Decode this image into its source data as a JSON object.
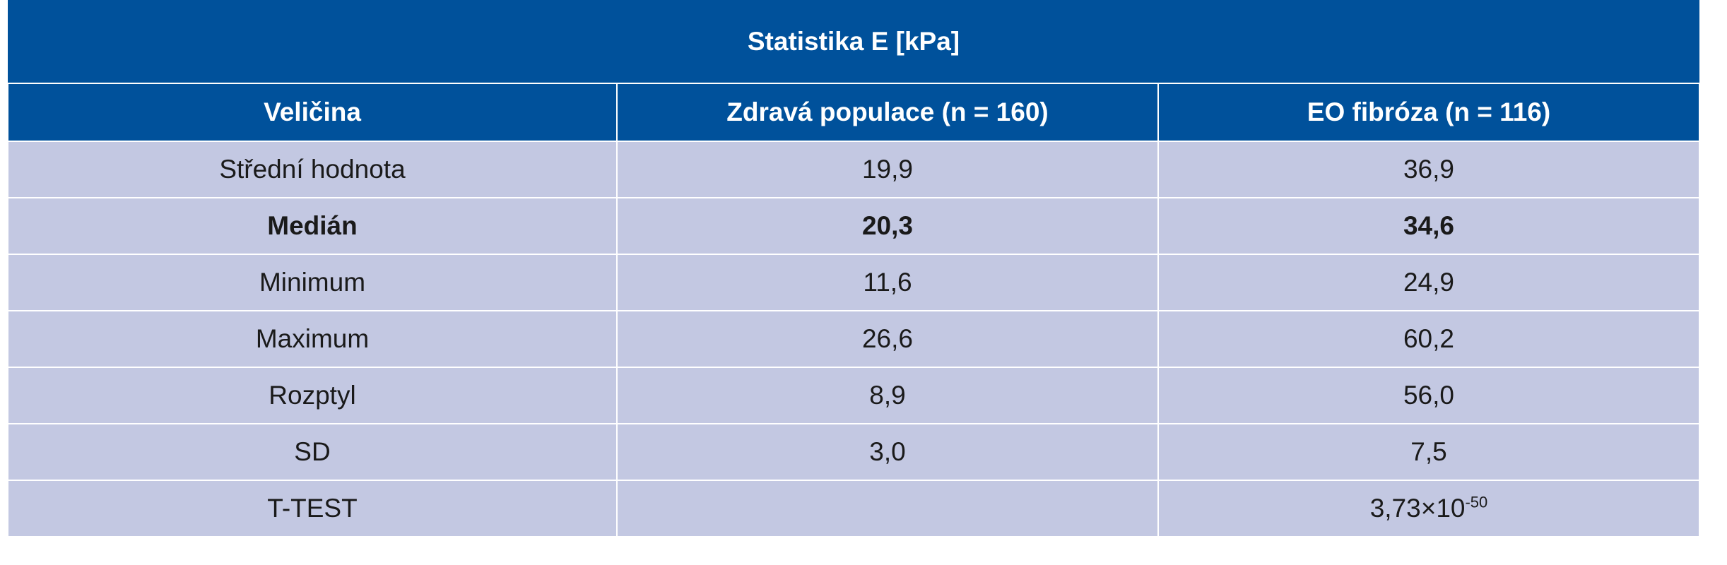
{
  "table": {
    "title": "Statistika E [kPa]",
    "headers": [
      "Veličina",
      "Zdravá populace (n = 160)",
      "EO fibróza (n = 116)"
    ],
    "rows": [
      {
        "label": "Střední hodnota",
        "healthy": "19,9",
        "fibrosis": "36,9"
      },
      {
        "label": "Medián",
        "healthy": "20,3",
        "fibrosis": "34,6"
      },
      {
        "label": "Minimum",
        "healthy": "11,6",
        "fibrosis": "24,9"
      },
      {
        "label": "Maximum",
        "healthy": "26,6",
        "fibrosis": "60,2"
      },
      {
        "label": "Rozptyl",
        "healthy": "8,9",
        "fibrosis": "56,0"
      },
      {
        "label": "SD",
        "healthy": "3,0",
        "fibrosis": "7,5"
      },
      {
        "label": "T-TEST",
        "healthy": "",
        "fibrosis_base": "3,73×10",
        "fibrosis_exp": "-50"
      }
    ]
  },
  "colors": {
    "header_bg": "#00519b",
    "row_bg": "#c3c8e2",
    "header_text": "#ffffff"
  }
}
